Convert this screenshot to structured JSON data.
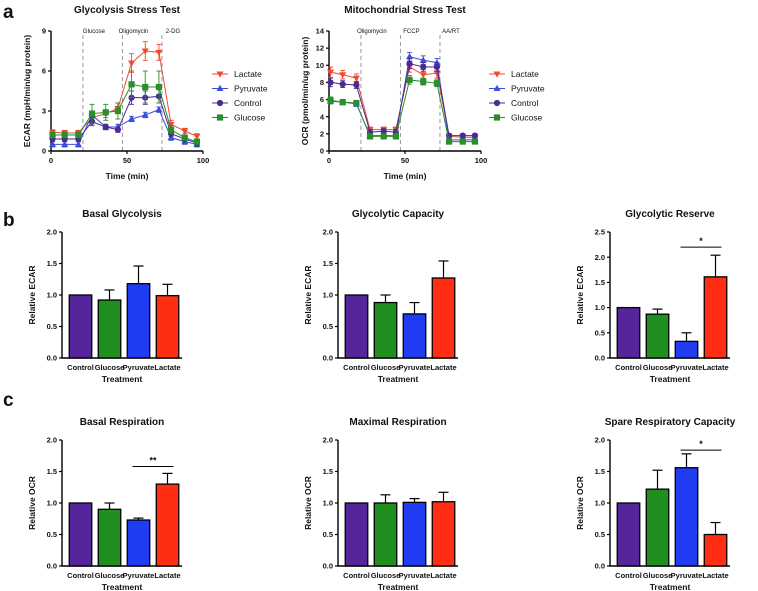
{
  "panel_labels": [
    "a",
    "b",
    "c"
  ],
  "chart_data": [
    {
      "id": "glyco",
      "type": "line",
      "title": "Glycolysis Stress Test",
      "xlabel": "Time (min)",
      "ylabel": "ECAR (mpH/min/ug protein)",
      "xlim": [
        0,
        100
      ],
      "ylim": [
        0,
        9
      ],
      "xticks": [
        0,
        50,
        100
      ],
      "yticks": [
        0,
        3,
        6,
        9
      ],
      "injections": [
        {
          "x": 21,
          "label": "Glucose"
        },
        {
          "x": 47,
          "label": "Oligomycin"
        },
        {
          "x": 73,
          "label": "2-DG"
        }
      ],
      "x": [
        1,
        9,
        18,
        27,
        36,
        44,
        53,
        62,
        71,
        79,
        88,
        96
      ],
      "series": [
        {
          "name": "Lactate",
          "color": "#ee4b32",
          "marker": "tri-down",
          "values": [
            1.4,
            1.35,
            1.35,
            2.5,
            2.8,
            3.2,
            6.6,
            7.5,
            7.4,
            2.0,
            1.5,
            1.1
          ],
          "errors": [
            0.2,
            0.2,
            0.2,
            0.3,
            0.3,
            0.4,
            0.7,
            0.7,
            0.6,
            0.3,
            0.2,
            0.2
          ]
        },
        {
          "name": "Pyruvate",
          "color": "#3c4fd8",
          "marker": "tri-up",
          "values": [
            0.5,
            0.5,
            0.5,
            2.7,
            1.8,
            1.8,
            2.4,
            2.7,
            3.1,
            1.0,
            0.7,
            0.5
          ],
          "errors": [
            0.2,
            0.2,
            0.2,
            0.3,
            0.2,
            0.2,
            0.2,
            0.2,
            0.2,
            0.2,
            0.2,
            0.2
          ]
        },
        {
          "name": "Control",
          "color": "#4b2a92",
          "marker": "circle",
          "values": [
            0.9,
            0.9,
            0.9,
            2.2,
            1.8,
            1.6,
            4.0,
            4.0,
            4.1,
            1.3,
            0.9,
            0.6
          ],
          "errors": [
            0.2,
            0.2,
            0.2,
            0.3,
            0.2,
            0.2,
            0.5,
            0.5,
            0.5,
            0.2,
            0.2,
            0.2
          ]
        },
        {
          "name": "Glucose",
          "color": "#2a8f2a",
          "marker": "square",
          "values": [
            1.2,
            1.2,
            1.2,
            2.8,
            2.9,
            3.0,
            5.0,
            4.8,
            4.8,
            1.6,
            1.0,
            0.7
          ],
          "errors": [
            0.2,
            0.2,
            0.2,
            0.7,
            0.6,
            0.6,
            1.0,
            1.2,
            1.2,
            0.3,
            0.2,
            0.2
          ]
        }
      ],
      "legend_position": "right"
    },
    {
      "id": "mito",
      "type": "line",
      "title": "Mitochondrial Stress Test",
      "xlabel": "Time (min)",
      "ylabel": "OCR (pmol/min/ug protein)",
      "xlim": [
        0,
        100
      ],
      "ylim": [
        0,
        14
      ],
      "xticks": [
        0,
        50,
        100
      ],
      "yticks": [
        0,
        2,
        4,
        6,
        8,
        10,
        12,
        14
      ],
      "injections": [
        {
          "x": 21,
          "label": "Oligomycin"
        },
        {
          "x": 47,
          "label": "FCCP"
        },
        {
          "x": 73,
          "label": "AA/RT"
        }
      ],
      "x": [
        1,
        9,
        18,
        27,
        36,
        44,
        53,
        62,
        71,
        79,
        88,
        96
      ],
      "series": [
        {
          "name": "Lactate",
          "color": "#ee4b32",
          "marker": "tri-down",
          "values": [
            9.2,
            8.9,
            8.5,
            2.5,
            2.5,
            2.5,
            9.8,
            8.9,
            9.1,
            1.7,
            1.6,
            1.6
          ],
          "errors": [
            0.6,
            0.5,
            0.5,
            0.3,
            0.3,
            0.3,
            0.6,
            0.6,
            0.6,
            0.2,
            0.2,
            0.2
          ]
        },
        {
          "name": "Pyruvate",
          "color": "#3c4fd8",
          "marker": "tri-up",
          "values": [
            5.8,
            5.7,
            5.5,
            1.8,
            1.8,
            1.8,
            11.0,
            10.6,
            10.3,
            1.3,
            1.3,
            1.3
          ],
          "errors": [
            0.3,
            0.3,
            0.3,
            0.2,
            0.2,
            0.2,
            0.5,
            0.5,
            0.5,
            0.2,
            0.2,
            0.2
          ]
        },
        {
          "name": "Control",
          "color": "#4b2a92",
          "marker": "circle",
          "values": [
            8.0,
            7.8,
            7.7,
            2.2,
            2.3,
            2.2,
            10.2,
            9.8,
            9.8,
            1.8,
            1.8,
            1.8
          ],
          "errors": [
            0.5,
            0.4,
            0.4,
            0.3,
            0.3,
            0.3,
            0.6,
            0.5,
            0.5,
            0.2,
            0.2,
            0.2
          ]
        },
        {
          "name": "Glucose",
          "color": "#2a8f2a",
          "marker": "square",
          "values": [
            5.9,
            5.7,
            5.6,
            1.7,
            1.7,
            1.7,
            8.3,
            8.1,
            7.9,
            1.1,
            1.1,
            1.1
          ],
          "errors": [
            0.4,
            0.3,
            0.3,
            0.2,
            0.2,
            0.2,
            0.5,
            0.4,
            0.4,
            0.2,
            0.2,
            0.2
          ]
        }
      ],
      "legend_position": "right"
    },
    {
      "id": "basal_glyc",
      "type": "bar",
      "title": "Basal Glycolysis",
      "xlabel": "Treatment",
      "ylabel": "Relative ECAR",
      "categories": [
        "Control",
        "Glucose",
        "Pyruvate",
        "Lactate"
      ],
      "values": [
        1.0,
        0.92,
        1.18,
        0.99
      ],
      "errors": [
        0,
        0.16,
        0.28,
        0.18
      ],
      "colors": [
        "#55269a",
        "#1f8f1f",
        "#1f3cf0",
        "#ff2d12"
      ],
      "ylim": [
        0,
        2.0
      ],
      "yticks": [
        "0.0",
        "0.5",
        "1.0",
        "1.5",
        "2.0"
      ],
      "significance": []
    },
    {
      "id": "glyc_cap",
      "type": "bar",
      "title": "Glycolytic Capacity",
      "xlabel": "Treatment",
      "ylabel": "Relative ECAR",
      "categories": [
        "Control",
        "Glucose",
        "Pyruvate",
        "Lactate"
      ],
      "values": [
        1.0,
        0.88,
        0.7,
        1.27
      ],
      "errors": [
        0,
        0.12,
        0.18,
        0.27
      ],
      "colors": [
        "#55269a",
        "#1f8f1f",
        "#1f3cf0",
        "#ff2d12"
      ],
      "ylim": [
        0,
        2.0
      ],
      "yticks": [
        "0.0",
        "0.5",
        "1.0",
        "1.5",
        "2.0"
      ],
      "significance": []
    },
    {
      "id": "glyc_res",
      "type": "bar",
      "title": "Glycolytic Reserve",
      "xlabel": "Treatment",
      "ylabel": "Relative ECAR",
      "categories": [
        "Control",
        "Glucose",
        "Pyruvate",
        "Lactate"
      ],
      "values": [
        1.0,
        0.87,
        0.33,
        1.61
      ],
      "errors": [
        0,
        0.1,
        0.17,
        0.43
      ],
      "colors": [
        "#55269a",
        "#1f8f1f",
        "#1f3cf0",
        "#ff2d12"
      ],
      "ylim": [
        0,
        2.5
      ],
      "yticks": [
        "0.0",
        "0.5",
        "1.0",
        "1.5",
        "2.0",
        "2.5"
      ],
      "significance": [
        {
          "from": 2,
          "to": 3,
          "level": 2.2,
          "label": "*"
        }
      ]
    },
    {
      "id": "basal_resp",
      "type": "bar",
      "title": "Basal Respiration",
      "xlabel": "Treatment",
      "ylabel": "Relative OCR",
      "categories": [
        "Control",
        "Glucose",
        "Pyruvate",
        "Lactate"
      ],
      "values": [
        1.0,
        0.9,
        0.73,
        1.3
      ],
      "errors": [
        0,
        0.1,
        0.03,
        0.17
      ],
      "colors": [
        "#55269a",
        "#1f8f1f",
        "#1f3cf0",
        "#ff2d12"
      ],
      "ylim": [
        0,
        2.0
      ],
      "yticks": [
        "0.0",
        "0.5",
        "1.0",
        "1.5",
        "2.0"
      ],
      "significance": [
        {
          "from": 2,
          "to": 3,
          "level": 1.58,
          "label": "**"
        }
      ]
    },
    {
      "id": "max_resp",
      "type": "bar",
      "title": "Maximal Respiration",
      "xlabel": "Treatment",
      "ylabel": "Relative OCR",
      "categories": [
        "Control",
        "Glucose",
        "Pyruvate",
        "Lactate"
      ],
      "values": [
        1.0,
        1.0,
        1.01,
        1.02
      ],
      "errors": [
        0,
        0.13,
        0.06,
        0.15
      ],
      "colors": [
        "#55269a",
        "#1f8f1f",
        "#1f3cf0",
        "#ff2d12"
      ],
      "ylim": [
        0,
        2.0
      ],
      "yticks": [
        "0.0",
        "0.5",
        "1.0",
        "1.5",
        "2.0"
      ],
      "significance": []
    },
    {
      "id": "spare_resp",
      "type": "bar",
      "title": "Spare Respiratory Capacity",
      "xlabel": "Treatment",
      "ylabel": "Relative OCR",
      "categories": [
        "Control",
        "Glucose",
        "Pyruvate",
        "Lactate"
      ],
      "values": [
        1.0,
        1.22,
        1.56,
        0.5
      ],
      "errors": [
        0,
        0.3,
        0.22,
        0.19
      ],
      "colors": [
        "#55269a",
        "#1f8f1f",
        "#1f3cf0",
        "#ff2d12"
      ],
      "ylim": [
        0,
        2.0
      ],
      "yticks": [
        "0.0",
        "0.5",
        "1.0",
        "1.5",
        "2.0"
      ],
      "significance": [
        {
          "from": 2,
          "to": 3,
          "level": 1.84,
          "label": "*"
        }
      ]
    }
  ]
}
